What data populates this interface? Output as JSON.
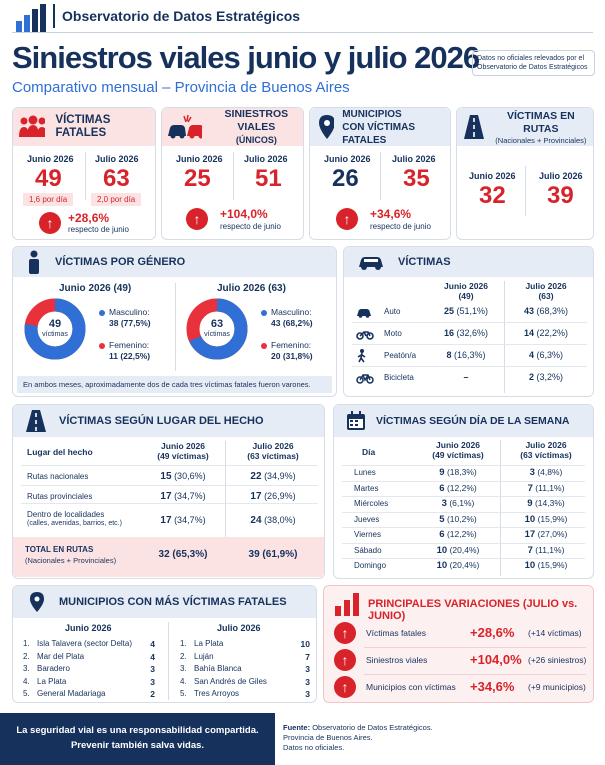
{
  "org": {
    "name": "Observatorio de Datos Estratégicos"
  },
  "title": "Siniestros viales junio y julio 2026",
  "subtitle": "Comparativo mensual – Provincia de Buenos Aires",
  "note": "Datos no oficiales relevados por el Observatorio de Datos Estratégicos",
  "kpis": {
    "victimas": {
      "title": "VÍCTIMAS FATALES",
      "m1": "Junio 2026",
      "v1": "49",
      "r1": "1,6 por día",
      "m2": "Julio 2026",
      "v2": "63",
      "r2": "2,0 por día",
      "pct": "+28,6%",
      "resp": "respecto de junio"
    },
    "siniestros": {
      "title": "SINIESTROS VIALES",
      "title2": "(ÚNICOS)",
      "m1": "Junio 2026",
      "v1": "25",
      "m2": "Julio 2026",
      "v2": "51",
      "pct": "+104,0%",
      "resp": "respecto de junio"
    },
    "municipios": {
      "title": "MUNICIPIOS",
      "title2": "CON VÍCTIMAS FATALES",
      "m1": "Junio 2026",
      "v1": "26",
      "m2": "Julio 2026",
      "v2": "35",
      "pct": "+34,6%",
      "resp": "respecto de junio"
    },
    "rutas": {
      "title": "VÍCTIMAS EN RUTAS",
      "title2": "(Nacionales + Provinciales)",
      "m1": "Junio 2026",
      "v1": "32",
      "m2": "Julio 2026",
      "v2": "39"
    }
  },
  "genero": {
    "title": "VÍCTIMAS POR GÉNERO",
    "j_title": "Junio 2026 (49)",
    "j_total": "49",
    "j_lbl": "víctimas",
    "j_m_lbl": "Masculino:",
    "j_m": "38 (77,5%)",
    "j_f_lbl": "Femenino:",
    "j_f": "11 (22,5%)",
    "j_frac": 0.775,
    "l_title": "Julio 2026 (63)",
    "l_total": "63",
    "l_lbl": "víctimas",
    "l_m_lbl": "Masculino:",
    "l_m": "43 (68,2%)",
    "l_f_lbl": "Femenino:",
    "l_f": "20 (31,8%)",
    "l_frac": 0.682,
    "footer": "En ambos meses, aproximadamente dos de cada tres víctimas fatales fueron varones."
  },
  "vehiculos": {
    "title": "VÍCTIMAS",
    "h1": "Junio 2026",
    "h1b": "(49)",
    "h2": "Julio 2026",
    "h2b": "(63)",
    "rows": [
      {
        "icon": "car-icon",
        "name": "Auto",
        "a": "25",
        "ap": "(51,1%)",
        "b": "43",
        "bp": "(68,3%)"
      },
      {
        "icon": "motorcycle-icon",
        "name": "Moto",
        "a": "16",
        "ap": "(32,6%)",
        "b": "14",
        "bp": "(22,2%)"
      },
      {
        "icon": "pedestrian-icon",
        "name": "Peatón/a",
        "a": "8",
        "ap": "(16,3%)",
        "b": "4",
        "bp": "(6,3%)"
      },
      {
        "icon": "bicycle-icon",
        "name": "Bicicleta",
        "a": "–",
        "ap": "",
        "b": "2",
        "bp": "(3,2%)"
      }
    ]
  },
  "lugar": {
    "title": "VÍCTIMAS SEGÚN LUGAR DEL HECHO",
    "h0": "Lugar del hecho",
    "h1": "Junio 2026",
    "h1b": "(49 víctimas)",
    "h2": "Julio 2026",
    "h2b": "(63 víctimas)",
    "rows": [
      {
        "n": "Rutas nacionales",
        "n2": "",
        "a": "15",
        "ap": "(30,6%)",
        "b": "22",
        "bp": "(34,9%)"
      },
      {
        "n": "Rutas provinciales",
        "n2": "",
        "a": "17",
        "ap": "(34,7%)",
        "b": "17",
        "bp": "(26,9%)"
      },
      {
        "n": "Dentro de localidades",
        "n2": "(calles, avenidas, barrios, etc.)",
        "a": "17",
        "ap": "(34,7%)",
        "b": "24",
        "bp": "(38,0%)"
      }
    ],
    "total": {
      "n": "TOTAL EN RUTAS",
      "n2": "(Nacionales + Provinciales)",
      "a": "32 (65,3%)",
      "b": "39 (61,9%)"
    }
  },
  "dias": {
    "title": "VÍCTIMAS SEGÚN DÍA DE LA SEMANA",
    "h0": "Día",
    "h1": "Junio 2026",
    "h1b": "(49 víctimas)",
    "h2": "Julio 2026",
    "h2b": "(63 víctimas)",
    "rows": [
      {
        "d": "Lunes",
        "a": "9",
        "ap": "(18,3%)",
        "b": "3",
        "bp": "(4,8%)"
      },
      {
        "d": "Martes",
        "a": "6",
        "ap": "(12,2%)",
        "b": "7",
        "bp": "(11,1%)"
      },
      {
        "d": "Miércoles",
        "a": "3",
        "ap": "(6,1%)",
        "b": "9",
        "bp": "(14,3%)"
      },
      {
        "d": "Jueves",
        "a": "5",
        "ap": "(10,2%)",
        "b": "10",
        "bp": "(15,9%)"
      },
      {
        "d": "Viernes",
        "a": "6",
        "ap": "(12,2%)",
        "b": "17",
        "bp": "(27,0%)"
      },
      {
        "d": "Sábado",
        "a": "10",
        "ap": "(20,4%)",
        "b": "7",
        "bp": "(11,1%)"
      },
      {
        "d": "Domingo",
        "a": "10",
        "ap": "(20,4%)",
        "b": "10",
        "bp": "(15,9%)"
      }
    ]
  },
  "munis": {
    "title": "MUNICIPIOS CON MÁS VÍCTIMAS FATALES",
    "h1": "Junio 2026",
    "h2": "Julio 2026",
    "jun": [
      {
        "r": "1.",
        "n": "Isla Talavera (sector Delta)",
        "v": "4"
      },
      {
        "r": "2.",
        "n": "Mar del Plata",
        "v": "4"
      },
      {
        "r": "3.",
        "n": "Baradero",
        "v": "3"
      },
      {
        "r": "4.",
        "n": "La Plata",
        "v": "3"
      },
      {
        "r": "5.",
        "n": "General Madariaga",
        "v": "2"
      }
    ],
    "jul": [
      {
        "r": "1.",
        "n": "La Plata",
        "v": "10"
      },
      {
        "r": "2.",
        "n": "Luján",
        "v": "7"
      },
      {
        "r": "3.",
        "n": "Bahía Blanca",
        "v": "3"
      },
      {
        "r": "4.",
        "n": "San Andrés de Giles",
        "v": "3"
      },
      {
        "r": "5.",
        "n": "Tres Arroyos",
        "v": "3"
      }
    ]
  },
  "variaciones": {
    "title": "PRINCIPALES VARIACIONES (JULIO vs. JUNIO)",
    "rows": [
      {
        "n": "Víctimas fatales",
        "p": "+28,6%",
        "d": "(+14 víctimas)"
      },
      {
        "n": "Siniestros viales",
        "p": "+104,0%",
        "d": "(+26 siniestros)"
      },
      {
        "n": "Municipios con víctimas",
        "p": "+34,6%",
        "d": "(+9 municipios)"
      }
    ]
  },
  "footer": {
    "l1": "La seguridad vial es una responsabilidad compartida.",
    "l2": "Prevenir también salva vidas.",
    "src_lbl": "Fuente:",
    "src": "Observatorio de Datos Estratégicos.",
    "src2": "Provincia de Buenos Aires.",
    "src3": "Datos no oficiales."
  },
  "colors": {
    "navy": "#16325c",
    "red": "#d8232a",
    "male": "#2f6fd6",
    "female": "#e8313a"
  }
}
